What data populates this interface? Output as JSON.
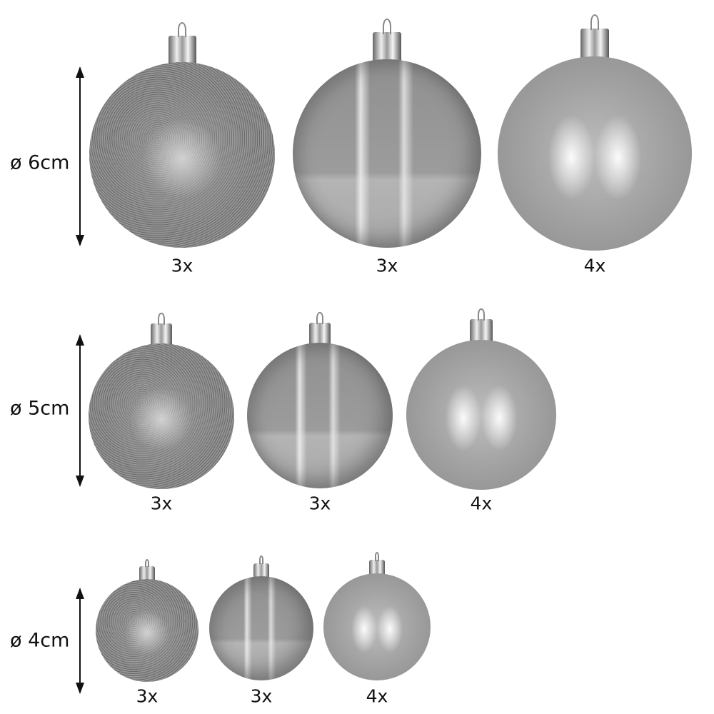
{
  "rows": [
    {
      "size_label": "ø 6cm",
      "balls": [
        {
          "finish": "glitter",
          "count": "3x"
        },
        {
          "finish": "glossy",
          "count": "3x"
        },
        {
          "finish": "matte",
          "count": "4x"
        }
      ]
    },
    {
      "size_label": "ø 5cm",
      "balls": [
        {
          "finish": "glitter",
          "count": "3x"
        },
        {
          "finish": "glossy",
          "count": "3x"
        },
        {
          "finish": "matte",
          "count": "4x"
        }
      ]
    },
    {
      "size_label": "ø 4cm",
      "balls": [
        {
          "finish": "glitter",
          "count": "3x"
        },
        {
          "finish": "glossy",
          "count": "3x"
        },
        {
          "finish": "matte",
          "count": "4x"
        }
      ]
    }
  ],
  "colors": {
    "ornament": "#9a9a9a",
    "text": "#111111"
  }
}
